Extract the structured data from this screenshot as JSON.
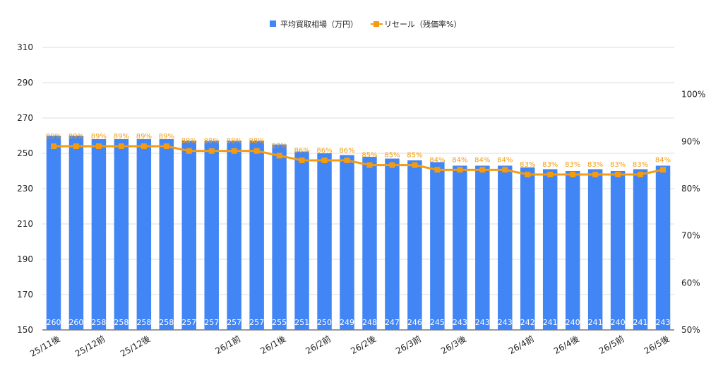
{
  "chart_data": {
    "type": "bar",
    "legend": {
      "position": "top",
      "items": [
        {
          "name": "平均買取相場（万円）",
          "color": "#4285f4",
          "symbol": "square"
        },
        {
          "name": "リセール（残価率%）",
          "color": "#f39c12",
          "symbol": "square-line"
        }
      ]
    },
    "grid": true,
    "y_left": {
      "range": [
        150,
        310
      ],
      "ticks": [
        150,
        170,
        190,
        210,
        230,
        250,
        270,
        290,
        310
      ]
    },
    "y_right": {
      "range": [
        50,
        110
      ],
      "ticks": [
        "50%",
        "60%",
        "70%",
        "80%",
        "90%",
        "100%"
      ],
      "tick_values": [
        50,
        60,
        70,
        80,
        90,
        100
      ]
    },
    "x_tick_labels": [
      {
        "index": 0,
        "label": "25/11後"
      },
      {
        "index": 2,
        "label": "25/12前"
      },
      {
        "index": 4,
        "label": "25/12後"
      },
      {
        "index": 8,
        "label": "26/1前"
      },
      {
        "index": 10,
        "label": "26/1後"
      },
      {
        "index": 12,
        "label": "26/2前"
      },
      {
        "index": 14,
        "label": "26/2後"
      },
      {
        "index": 16,
        "label": "26/3前"
      },
      {
        "index": 18,
        "label": "26/3後"
      },
      {
        "index": 21,
        "label": "26/4前"
      },
      {
        "index": 23,
        "label": "26/4後"
      },
      {
        "index": 25,
        "label": "26/5前"
      },
      {
        "index": 27,
        "label": "26/5後"
      }
    ],
    "series": [
      {
        "name": "平均買取相場（万円）",
        "type": "bar",
        "axis": "left",
        "color": "#4285f4",
        "values": [
          260,
          260,
          258,
          258,
          258,
          258,
          257,
          257,
          257,
          257,
          255,
          251,
          250,
          249,
          248,
          247,
          246,
          245,
          243,
          243,
          243,
          242,
          241,
          240,
          241,
          240,
          241,
          243
        ]
      },
      {
        "name": "リセール（残価率%）",
        "type": "line",
        "axis": "right",
        "color": "#f39c12",
        "values": [
          89,
          89,
          89,
          89,
          89,
          89,
          88,
          88,
          88,
          88,
          87,
          86,
          86,
          86,
          85,
          85,
          85,
          84,
          84,
          84,
          84,
          83,
          83,
          83,
          83,
          83,
          83,
          84
        ]
      }
    ]
  }
}
